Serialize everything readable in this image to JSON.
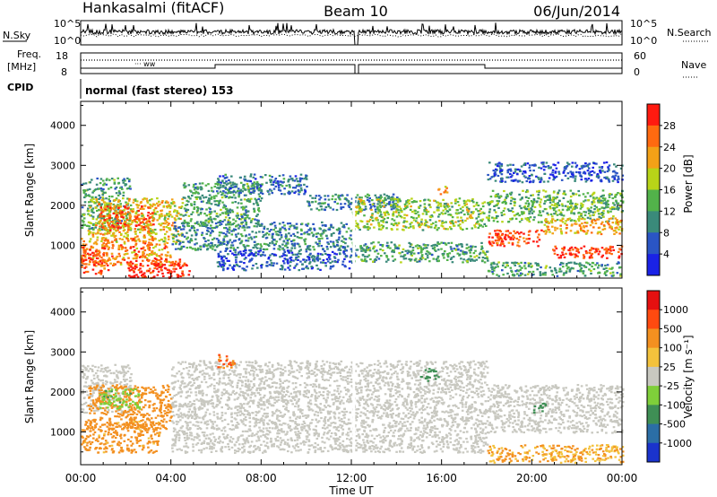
{
  "header": {
    "station": "Hankasalmi (fitACF)",
    "beam": "Beam 10",
    "date": "06/Jun/2014"
  },
  "status_panels": {
    "nsky_label": "N.Sky",
    "nsky_ticks": [
      "10^5",
      "10^0"
    ],
    "nsearch_label": "N.Search",
    "freq_label_line1": "Freq.",
    "freq_label_line2": "[MHz]",
    "freq_ticks": [
      "18",
      "8"
    ],
    "nave_label": "Nave",
    "nave_ticks": [
      "60",
      "0"
    ],
    "cpid_label": "CPID",
    "cpid_text": "normal (fast stereo) 153"
  },
  "chart_data": [
    {
      "type": "heatmap",
      "name": "power",
      "ylabel": "Slant Range [km]",
      "xlabel": "",
      "ylim": [
        180,
        4600
      ],
      "yticks": [
        "1000",
        "2000",
        "3000",
        "4000"
      ],
      "xlim": [
        0,
        24
      ],
      "colorbar_label": "Power [dB]",
      "colorbar_ticks": [
        "28",
        "24",
        "20",
        "16",
        "12",
        "8",
        "4"
      ],
      "colorbar_colors": [
        "#1a22e6",
        "#2a55c4",
        "#3a8a7a",
        "#52b24a",
        "#b8d418",
        "#f3a117",
        "#ff6a10",
        "#ff1a10"
      ],
      "regions": [
        {
          "t": [
            0.0,
            2.2
          ],
          "r": [
            1400,
            2700
          ],
          "v": 12
        },
        {
          "t": [
            0.3,
            4.5
          ],
          "r": [
            1100,
            2200
          ],
          "v": 20
        },
        {
          "t": [
            0.8,
            3.2
          ],
          "r": [
            1400,
            2000
          ],
          "v": 27
        },
        {
          "t": [
            0.0,
            4.0
          ],
          "r": [
            500,
            1200
          ],
          "v": 24
        },
        {
          "t": [
            0.0,
            1.2
          ],
          "r": [
            300,
            1000
          ],
          "v": 28
        },
        {
          "t": [
            2.0,
            4.8
          ],
          "r": [
            200,
            700
          ],
          "v": 30
        },
        {
          "t": [
            4.5,
            8.0
          ],
          "r": [
            1500,
            2600
          ],
          "v": 12
        },
        {
          "t": [
            6.0,
            10.0
          ],
          "r": [
            2300,
            2800
          ],
          "v": 8
        },
        {
          "t": [
            4.0,
            12.0
          ],
          "r": [
            900,
            1600
          ],
          "v": 10
        },
        {
          "t": [
            6.0,
            12.0
          ],
          "r": [
            400,
            900
          ],
          "v": 6
        },
        {
          "t": [
            10.0,
            14.0
          ],
          "r": [
            1900,
            2300
          ],
          "v": 9
        },
        {
          "t": [
            12.0,
            18.0
          ],
          "r": [
            1400,
            2200
          ],
          "v": 16
        },
        {
          "t": [
            12.0,
            18.0
          ],
          "r": [
            600,
            1100
          ],
          "v": 12
        },
        {
          "t": [
            15.8,
            16.3
          ],
          "r": [
            2300,
            2500
          ],
          "v": 24
        },
        {
          "t": [
            18.0,
            24.0
          ],
          "r": [
            1600,
            2400
          ],
          "v": 14
        },
        {
          "t": [
            18.0,
            20.5
          ],
          "r": [
            1000,
            1400
          ],
          "v": 28
        },
        {
          "t": [
            20.5,
            24.0
          ],
          "r": [
            1300,
            1700
          ],
          "v": 22
        },
        {
          "t": [
            20.8,
            24.0
          ],
          "r": [
            700,
            1000
          ],
          "v": 29
        },
        {
          "t": [
            18.0,
            24.0
          ],
          "r": [
            2600,
            3100
          ],
          "v": 6
        },
        {
          "t": [
            18.0,
            24.0
          ],
          "r": [
            250,
            600
          ],
          "v": 12
        }
      ]
    },
    {
      "type": "heatmap",
      "name": "velocity",
      "ylabel": "Slant Range [km]",
      "xlabel": "Time UT",
      "ylim": [
        180,
        4600
      ],
      "yticks": [
        "1000",
        "2000",
        "3000",
        "4000"
      ],
      "xlim": [
        0,
        24
      ],
      "xticks": [
        "00:00",
        "04:00",
        "08:00",
        "12:00",
        "16:00",
        "20:00",
        "00:00"
      ],
      "colorbar_label": "Velocity [m s⁻¹]",
      "colorbar_ticks": [
        "1000",
        "500",
        "100",
        "25",
        "-25",
        "-100",
        "-500",
        "-1000"
      ],
      "colorbar_colors": [
        "#1a33cc",
        "#2b6ea6",
        "#3f8f55",
        "#7fcf3a",
        "#c8c8c0",
        "#f3c23c",
        "#f39020",
        "#ff4a10",
        "#e61010"
      ],
      "regions": [
        {
          "t": [
            0.0,
            2.2
          ],
          "r": [
            1500,
            2700
          ],
          "v": 0
        },
        {
          "t": [
            0.3,
            4.0
          ],
          "r": [
            1100,
            2200
          ],
          "v": -300
        },
        {
          "t": [
            0.8,
            2.6
          ],
          "r": [
            1600,
            2100
          ],
          "v": 80
        },
        {
          "t": [
            0.0,
            3.5
          ],
          "r": [
            500,
            1300
          ],
          "v": -150
        },
        {
          "t": [
            4.0,
            18.0
          ],
          "r": [
            500,
            2800
          ],
          "v": 0
        },
        {
          "t": [
            6.0,
            6.8
          ],
          "r": [
            2600,
            2950
          ],
          "v": -600
        },
        {
          "t": [
            15.0,
            16.0
          ],
          "r": [
            2300,
            2600
          ],
          "v": 200
        },
        {
          "t": [
            18.0,
            24.0
          ],
          "r": [
            1000,
            2200
          ],
          "v": 0
        },
        {
          "t": [
            20.0,
            20.6
          ],
          "r": [
            1500,
            1800
          ],
          "v": 200
        },
        {
          "t": [
            18.0,
            24.0
          ],
          "r": [
            250,
            700
          ],
          "v": -100
        }
      ]
    }
  ]
}
